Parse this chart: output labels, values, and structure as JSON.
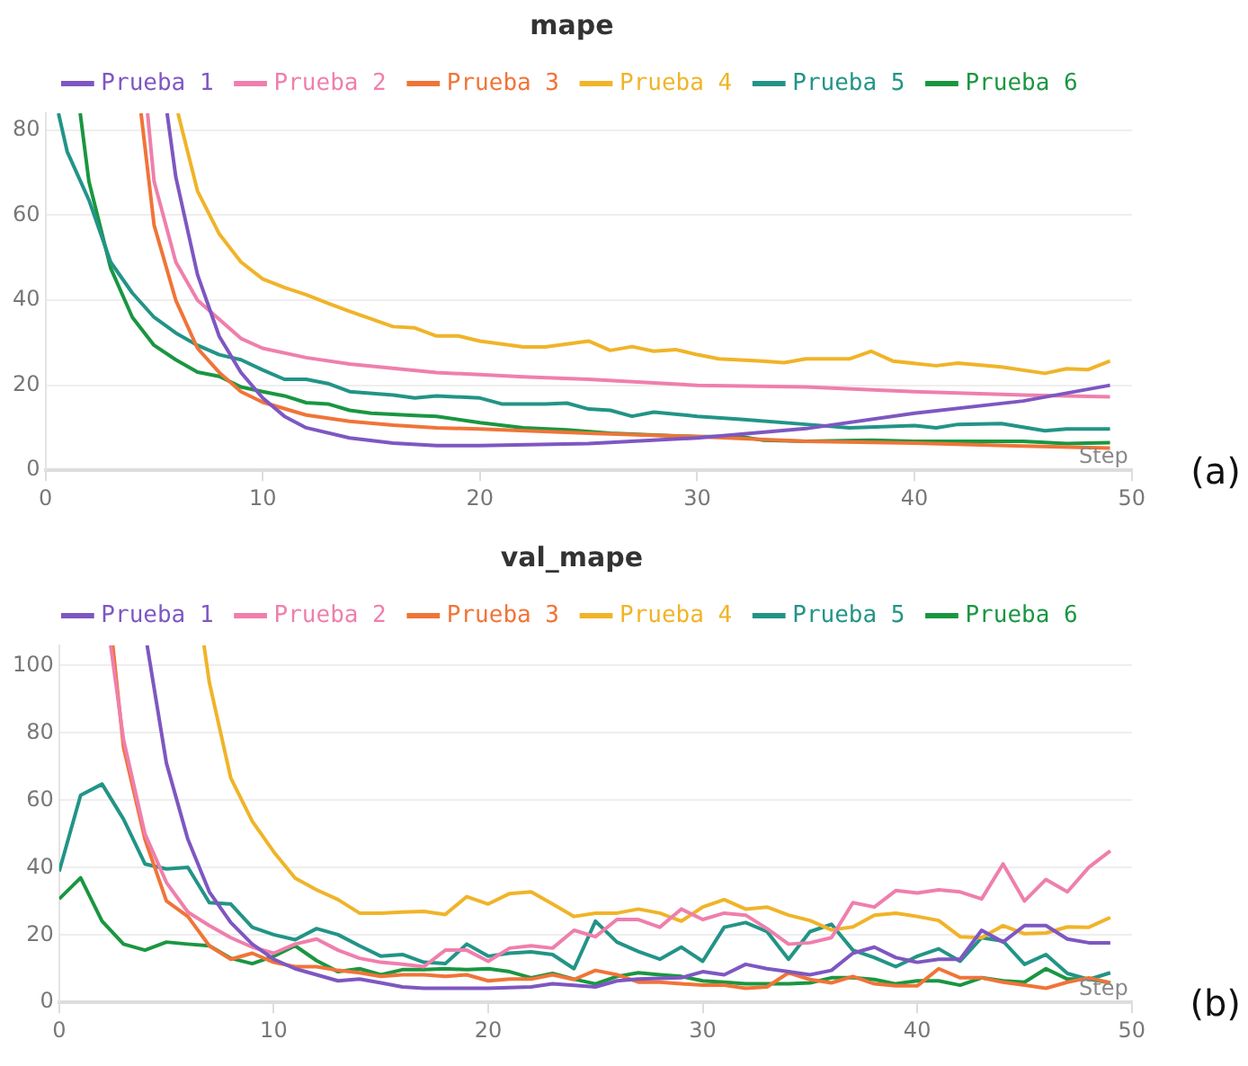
{
  "chart_data": [
    {
      "type": "line",
      "title": "mape",
      "xlabel": "Step",
      "annotations": [
        "(a)"
      ],
      "xlim": [
        0,
        50
      ],
      "xticks": [
        0,
        10,
        20,
        30,
        40,
        50
      ],
      "ylim": [
        0,
        84
      ],
      "yticks": [
        0,
        20,
        40,
        60,
        80
      ],
      "grid": "y",
      "legend": "top",
      "series": [
        {
          "name": "Prueba 1",
          "color": "#7e57c2",
          "x": [
            5.6,
            6,
            7,
            8,
            9,
            10,
            11,
            12,
            14,
            16,
            18,
            20,
            25,
            30,
            35,
            40,
            45,
            49
          ],
          "values": [
            84,
            69,
            46,
            31.5,
            23,
            17,
            12.7,
            10,
            7.6,
            6.4,
            5.8,
            5.8,
            6.3,
            7.6,
            9.8,
            13.4,
            16.3,
            20
          ]
        },
        {
          "name": "Prueba 2",
          "color": "#ef7fac",
          "x": [
            4.7,
            5,
            6,
            7,
            8,
            9,
            10,
            12,
            14,
            16,
            18,
            20,
            22,
            25,
            30,
            35,
            40,
            45,
            49
          ],
          "values": [
            84,
            68,
            49,
            40,
            35.5,
            31,
            28.7,
            26.5,
            25,
            24,
            23,
            22.5,
            22,
            21.4,
            20,
            19.6,
            18.5,
            17.7,
            17.3
          ]
        },
        {
          "name": "Prueba 3",
          "color": "#f07438",
          "x": [
            4.4,
            5,
            6,
            7,
            8,
            9,
            10,
            12,
            14,
            16,
            18,
            20,
            25,
            30,
            35,
            40,
            45,
            49
          ],
          "values": [
            84,
            57.7,
            40,
            28.7,
            23,
            18.5,
            16,
            13,
            11.5,
            10.6,
            10,
            9.7,
            8.7,
            7.9,
            6.8,
            6.4,
            5.7,
            5.2
          ]
        },
        {
          "name": "Prueba 4",
          "color": "#f0b429",
          "x": [
            6.1,
            7,
            8,
            9,
            10,
            11,
            12,
            13,
            14,
            15,
            16,
            17,
            18,
            19,
            20,
            22,
            23,
            24,
            25,
            26,
            27,
            28,
            29,
            30,
            31,
            33,
            34,
            35,
            37,
            38,
            39,
            41,
            42,
            44,
            46,
            47,
            48,
            49
          ],
          "values": [
            84,
            65.7,
            55.6,
            49,
            45,
            43,
            41.3,
            39.3,
            37.4,
            35.6,
            33.8,
            33.5,
            31.6,
            31.6,
            30.4,
            29,
            29,
            29.7,
            30.4,
            28.2,
            29.1,
            28,
            28.4,
            27.2,
            26.2,
            25.7,
            25.3,
            26.2,
            26.2,
            28,
            25.7,
            24.6,
            25.2,
            24.3,
            22.8,
            23.9,
            23.7,
            25.7
          ]
        },
        {
          "name": "Prueba 5",
          "color": "#229487",
          "x": [
            0.6,
            1,
            2,
            3,
            4,
            5,
            6,
            7,
            8,
            9,
            10,
            11,
            12,
            13,
            14,
            16,
            17,
            18,
            20,
            21,
            23,
            24,
            25,
            26,
            27,
            28,
            30,
            32,
            35,
            37,
            40,
            41,
            42,
            44,
            46,
            47,
            49
          ],
          "values": [
            84,
            75,
            63.6,
            49,
            41.7,
            36,
            32.3,
            29.4,
            27.2,
            26,
            23.6,
            21.4,
            21.4,
            20.4,
            18.5,
            17.7,
            17,
            17.5,
            17,
            15.6,
            15.6,
            15.8,
            14.4,
            14.1,
            12.7,
            13.7,
            12.7,
            12,
            10.8,
            10,
            10.5,
            10,
            10.8,
            11,
            9.3,
            9.7,
            9.7
          ]
        },
        {
          "name": "Prueba 6",
          "color": "#1a9641",
          "x": [
            1.6,
            2,
            3,
            4,
            5,
            6,
            7,
            8,
            9,
            10,
            11,
            12,
            13,
            14,
            15,
            17,
            18,
            20,
            22,
            24,
            26,
            28,
            30,
            32,
            33,
            35,
            38,
            40,
            43,
            45,
            47,
            49
          ],
          "values": [
            84,
            68,
            47.6,
            36,
            29.4,
            26,
            23.1,
            22.1,
            19.6,
            18.5,
            17.5,
            15.9,
            15.6,
            14.1,
            13.4,
            12.9,
            12.7,
            11.2,
            10,
            9.5,
            8.7,
            8.3,
            7.9,
            7.9,
            7.1,
            6.8,
            7.1,
            6.8,
            6.8,
            6.8,
            6.3,
            6.5
          ]
        }
      ]
    },
    {
      "type": "line",
      "title": "val_mape",
      "xlabel": "Step",
      "annotations": [
        "(b)"
      ],
      "xlim": [
        0,
        50
      ],
      "xticks": [
        0,
        10,
        20,
        30,
        40,
        50
      ],
      "ylim": [
        0,
        106
      ],
      "yticks": [
        0,
        20,
        40,
        60,
        80,
        100
      ],
      "grid": "y",
      "legend": "top",
      "series": [
        {
          "name": "Prueba 1",
          "color": "#7e57c2",
          "x": [
            4.1,
            5,
            6,
            7,
            8,
            9,
            10,
            11,
            12,
            13,
            14,
            15,
            16,
            17,
            20,
            22,
            23,
            25,
            26,
            27,
            29,
            30,
            31,
            32,
            33,
            34,
            35,
            36,
            37,
            38,
            39,
            40,
            41,
            42,
            43,
            44,
            45,
            46,
            47,
            48,
            49
          ],
          "values": [
            106,
            71,
            48.4,
            32.8,
            23.7,
            17.3,
            12.8,
            10,
            8.2,
            6.4,
            6.9,
            5.8,
            4.6,
            4.2,
            4.2,
            4.6,
            5.5,
            4.6,
            6.4,
            6.9,
            7.3,
            9.1,
            8.2,
            11.3,
            10,
            9.1,
            8.2,
            9.5,
            14.6,
            16.4,
            13.3,
            11.9,
            12.8,
            12.8,
            21.4,
            17.9,
            22.8,
            22.8,
            18.8,
            17.7,
            17.7
          ]
        },
        {
          "name": "Prueba 2",
          "color": "#ef7fac",
          "x": [
            2.4,
            3,
            4,
            5,
            6,
            7,
            8,
            9,
            10,
            11,
            12,
            13,
            14,
            15,
            16,
            17,
            18,
            19,
            20,
            21,
            22,
            23,
            24,
            25,
            26,
            27,
            28,
            29,
            30,
            31,
            32,
            33,
            34,
            35,
            36,
            37,
            38,
            39,
            40,
            41,
            42,
            43,
            44,
            45,
            46,
            47,
            48,
            49
          ],
          "values": [
            106,
            78,
            50,
            35.6,
            26.8,
            22.8,
            19.2,
            16.4,
            14.6,
            17.3,
            18.8,
            15.5,
            13.1,
            11.9,
            11.3,
            10.6,
            15.5,
            15.5,
            12.2,
            16.1,
            16.8,
            16.1,
            21.4,
            19.5,
            24.6,
            24.6,
            22.3,
            27.7,
            24.6,
            26.5,
            25.9,
            21.9,
            17.3,
            17.7,
            19.2,
            29.6,
            28.3,
            33.2,
            32.5,
            33.4,
            32.8,
            30.7,
            41.1,
            30.1,
            36.5,
            32.8,
            40.1,
            45
          ]
        },
        {
          "name": "Prueba 3",
          "color": "#f07438",
          "x": [
            2.5,
            3,
            4,
            5,
            6,
            7,
            8,
            9,
            10,
            11,
            12,
            13,
            14,
            15,
            16,
            17,
            18,
            19,
            20,
            21,
            22,
            23,
            24,
            25,
            26,
            27,
            28,
            29,
            30,
            31,
            32,
            33,
            34,
            35,
            36,
            37,
            38,
            39,
            40,
            41,
            42,
            43,
            44,
            45,
            46,
            47,
            48,
            49
          ],
          "values": [
            106,
            75.7,
            48.4,
            30.1,
            25.5,
            16.8,
            12.8,
            14.6,
            11.9,
            10.6,
            10.6,
            9.5,
            8.8,
            7.7,
            8.2,
            8.2,
            7.7,
            8.2,
            6.4,
            6.9,
            6.9,
            8.2,
            6.8,
            9.5,
            8.2,
            6,
            6,
            5.5,
            5.1,
            5.1,
            4.2,
            4.6,
            8.8,
            6.8,
            5.8,
            7.7,
            5.5,
            4.9,
            4.9,
            10,
            7.3,
            7.3,
            6,
            5.1,
            4.2,
            6,
            7.3,
            5.8
          ]
        },
        {
          "name": "Prueba 4",
          "color": "#f0b429",
          "x": [
            6.75,
            7,
            8,
            9,
            10,
            11,
            12,
            13,
            14,
            15,
            16,
            17,
            18,
            19,
            20,
            21,
            22,
            23,
            24,
            25,
            26,
            27,
            28,
            29,
            30,
            31,
            32,
            33,
            34,
            35,
            36,
            37,
            38,
            39,
            40,
            41,
            42,
            43,
            44,
            45,
            46,
            47,
            48,
            49
          ],
          "values": [
            106,
            95,
            66.6,
            53.8,
            44.7,
            36.9,
            33.4,
            30.5,
            26.5,
            26.5,
            26.8,
            27,
            26.1,
            31.4,
            29.2,
            32.3,
            32.8,
            29.2,
            25.5,
            26.5,
            26.5,
            27.7,
            26.5,
            24.1,
            28.3,
            30.5,
            27.7,
            28.3,
            25.9,
            24.3,
            21.5,
            22.4,
            25.9,
            26.5,
            25.5,
            24.3,
            19.5,
            19.2,
            22.8,
            20.4,
            20.6,
            22.4,
            22.3,
            25.2
          ]
        },
        {
          "name": "Prueba 5",
          "color": "#229487",
          "x": [
            0,
            1,
            2,
            3,
            4,
            5,
            6,
            7,
            8,
            9,
            10,
            11,
            12,
            13,
            14,
            15,
            16,
            17,
            18,
            19,
            20,
            21,
            22,
            23,
            24,
            25,
            26,
            27,
            28,
            29,
            30,
            31,
            32,
            33,
            34,
            35,
            36,
            37,
            38,
            39,
            40,
            41,
            42,
            43,
            44,
            45,
            46,
            47,
            48,
            49
          ],
          "values": [
            38.9,
            61.5,
            64.8,
            54.4,
            41.1,
            39.6,
            40.1,
            29.6,
            29.2,
            22.3,
            20.1,
            18.6,
            21.9,
            20.1,
            16.8,
            13.7,
            14.2,
            11.9,
            11.5,
            17.3,
            13.7,
            14.6,
            15,
            14.2,
            10,
            24.1,
            17.9,
            15.1,
            12.8,
            16.4,
            12.2,
            22.3,
            23.7,
            21,
            12.8,
            21,
            23.2,
            15.5,
            13.3,
            10.6,
            13.7,
            15.9,
            12.2,
            19.2,
            18.2,
            11.3,
            14.2,
            8.6,
            6.8,
            8.8
          ]
        },
        {
          "name": "Prueba 6",
          "color": "#1a9641",
          "x": [
            0,
            1,
            2,
            3,
            4,
            5,
            6,
            7,
            8,
            9,
            10,
            11,
            12,
            13,
            14,
            15,
            16,
            17,
            18,
            19,
            20,
            21,
            22,
            23,
            24,
            25,
            26,
            27,
            28,
            29,
            30,
            31,
            32,
            33,
            34,
            35,
            36,
            37,
            38,
            39,
            40,
            41,
            42,
            43,
            44,
            45,
            46,
            47,
            48,
            49
          ],
          "values": [
            30.7,
            37,
            24.1,
            17.3,
            15.5,
            17.9,
            17.3,
            16.8,
            13.1,
            11.5,
            13.7,
            16.8,
            12.4,
            9.1,
            10,
            8.2,
            9.7,
            9.7,
            10,
            9.7,
            10,
            9.1,
            7.3,
            8.6,
            6.9,
            5.5,
            7.7,
            8.8,
            8.2,
            7.7,
            6.4,
            6,
            5.5,
            5.5,
            5.5,
            5.8,
            7.3,
            7.3,
            6.8,
            5.5,
            6.4,
            6.4,
            5.1,
            7.3,
            6.4,
            6,
            10,
            6.9,
            6.9,
            5.8
          ]
        }
      ]
    }
  ]
}
